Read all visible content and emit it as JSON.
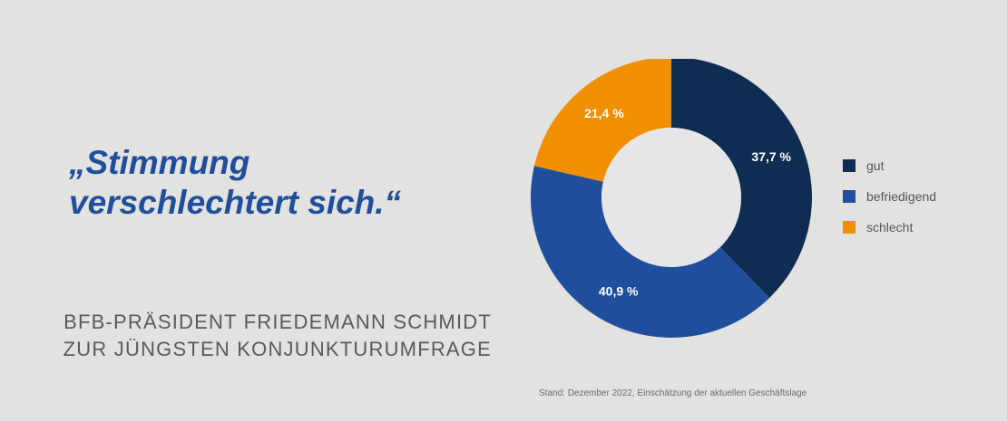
{
  "headline": {
    "line1": "„Stimmung",
    "line2": "verschlechtert sich.“"
  },
  "subtitle": {
    "line1": "BFB-PRÄSIDENT FRIEDEMANN SCHMIDT",
    "line2": "ZUR JÜNGSTEN KONJUNKTURUMFRAGE"
  },
  "source_note": "Stand: Dezember 2022, Einschätzung der aktuellen Geschäftslage",
  "chart_data": {
    "type": "pie",
    "donut": true,
    "title": "",
    "slices": [
      {
        "label": "gut",
        "value": 37.7,
        "value_label": "37,7 %",
        "color": "#0f2c52"
      },
      {
        "label": "befriedigend",
        "value": 40.9,
        "value_label": "40,9 %",
        "color": "#1f4e9c"
      },
      {
        "label": "schlecht",
        "value": 21.4,
        "value_label": "21,4 %",
        "color": "#f08f00"
      }
    ],
    "legend_position": "right"
  },
  "legend": [
    {
      "label": "gut",
      "color": "#0f2c52"
    },
    {
      "label": "befriedigend",
      "color": "#1f4e9c"
    },
    {
      "label": "schlecht",
      "color": "#f08f00"
    }
  ],
  "colors": {
    "background": "#e2e2e0",
    "donut_hole": "#e6e6e8",
    "headline": "#1f4e9c",
    "subtitle": "#5a5a5a",
    "slice_label": "#ffffff"
  }
}
